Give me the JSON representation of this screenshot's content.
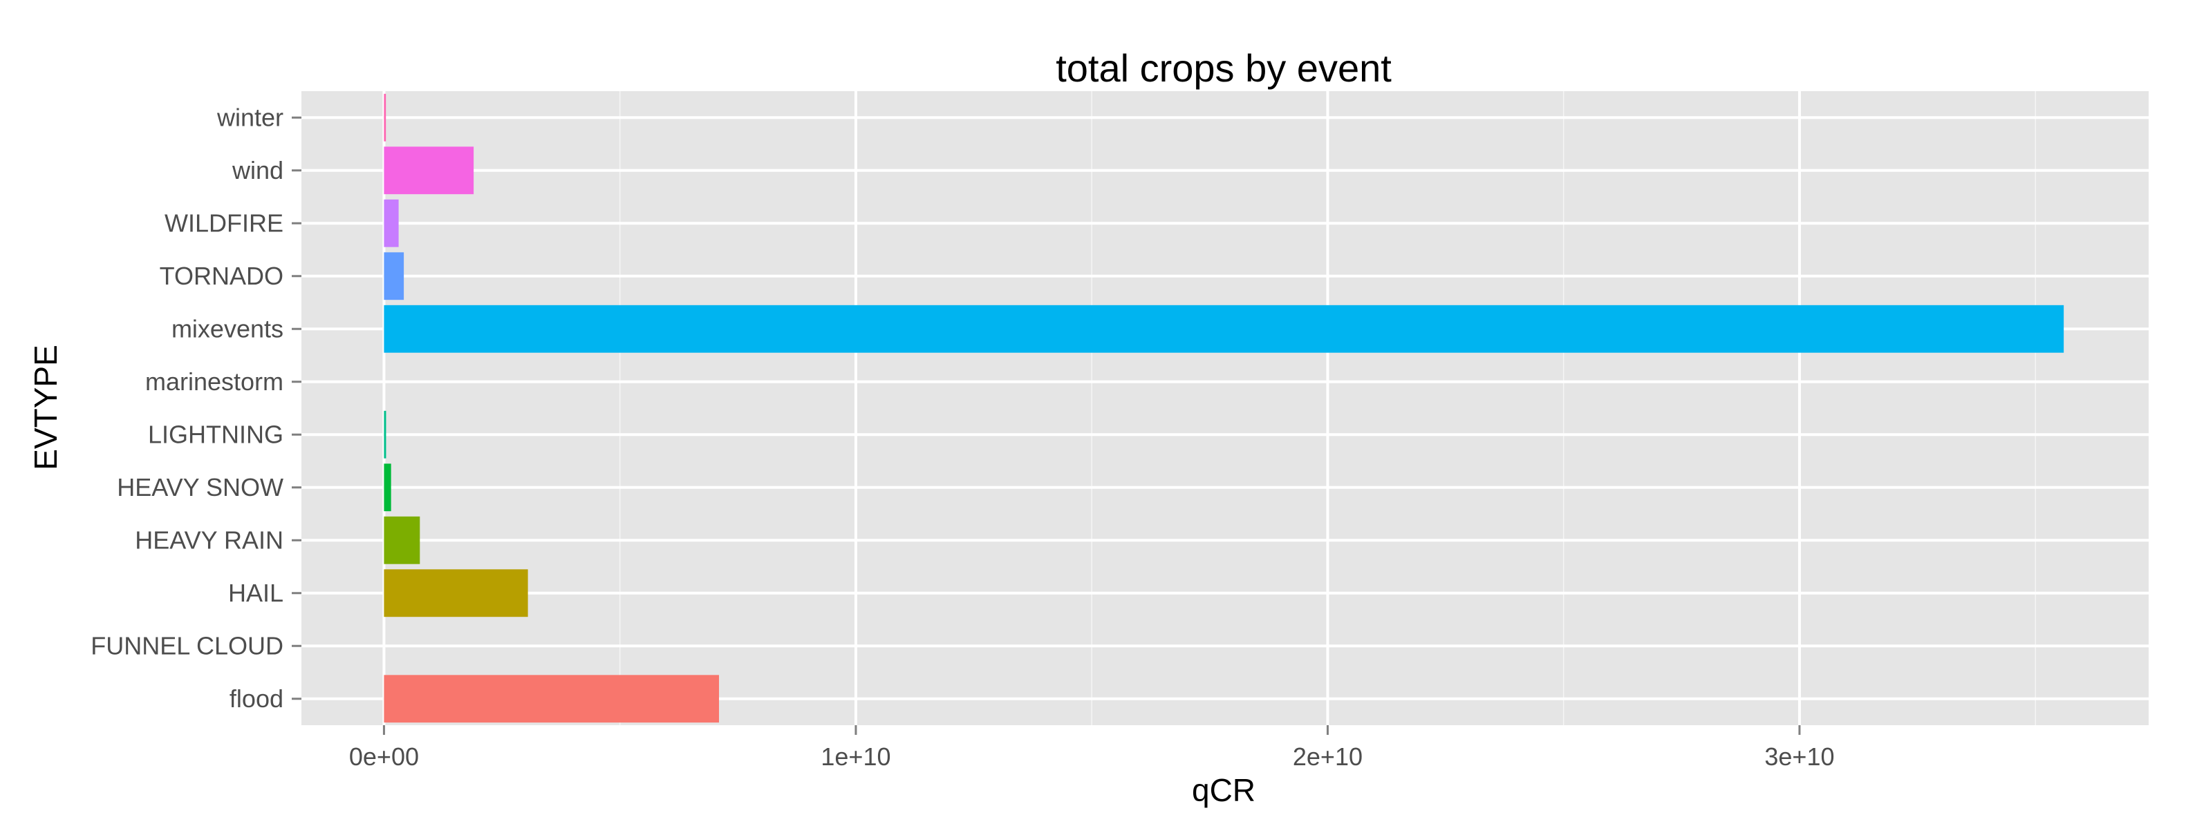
{
  "chart_data": {
    "type": "bar",
    "orientation": "horizontal",
    "title": "total crops by event",
    "xlabel": "qCR",
    "ylabel": "EVTYPE",
    "categories": [
      "flood",
      "FUNNEL CLOUD",
      "HAIL",
      "HEAVY RAIN",
      "HEAVY SNOW",
      "LIGHTNING",
      "marinestorm",
      "mixevents",
      "TORNADO",
      "WILDFIRE",
      "wind",
      "winter"
    ],
    "values": [
      7100000000,
      0,
      3050000000,
      760000000,
      150000000,
      10000000,
      0,
      35600000000,
      420000000,
      310000000,
      1900000000,
      40000000
    ],
    "colors": [
      "#F8766D",
      "#DE8C00",
      "#B79F00",
      "#7CAE00",
      "#00BA38",
      "#00C08B",
      "#00BFC4",
      "#00B4F0",
      "#619CFF",
      "#C77CFF",
      "#F564E3",
      "#FF64B0"
    ],
    "xlim": [
      -1750000000,
      37400000000
    ],
    "xticks": [
      0,
      10000000000,
      20000000000,
      30000000000
    ],
    "xtick_labels": [
      "0e+00",
      "1e+10",
      "2e+10",
      "3e+10"
    ],
    "grid": true,
    "legend": "none",
    "panel_background": "#E5E5E5",
    "grid_color": "#FFFFFF"
  }
}
